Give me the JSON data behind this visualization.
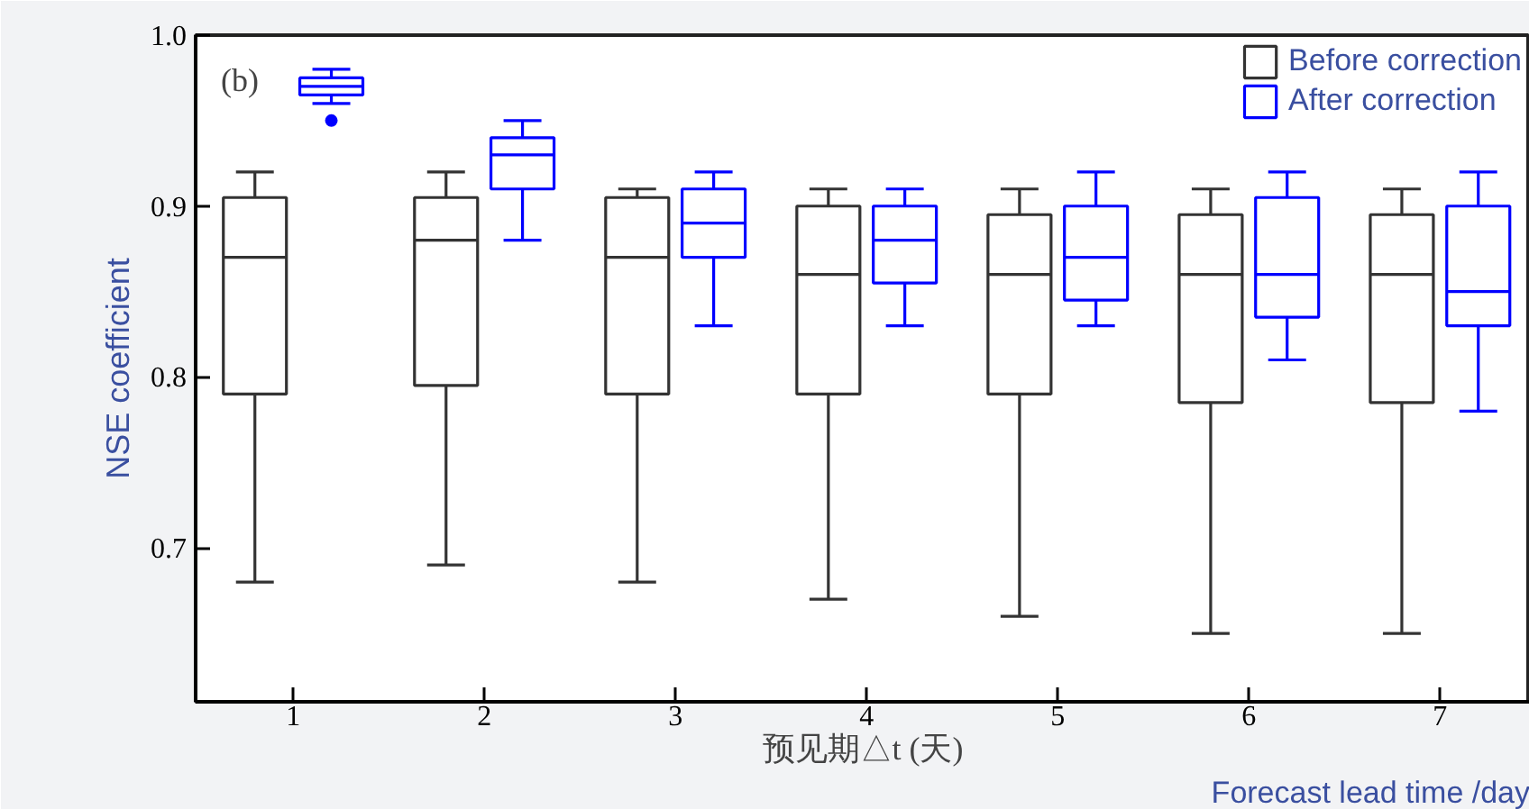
{
  "chart_data": {
    "type": "box",
    "categories": [
      "1",
      "2",
      "3",
      "4",
      "5",
      "6",
      "7"
    ],
    "xlabel": "预见期△t (天)",
    "ylabel": "NSE coefficient",
    "annotations": [
      "(b)",
      "Forecast lead time /day"
    ],
    "ylim": [
      0.61,
      1.0
    ],
    "yticks": [
      0.7,
      0.8,
      0.9,
      {
        "value": 1.0,
        "label": "1.0"
      }
    ],
    "grid": false,
    "legend": "top right",
    "series": [
      {
        "name": "Before correction",
        "color": "#333333",
        "boxes": [
          {
            "low": 0.68,
            "q1": 0.79,
            "median": 0.87,
            "q3": 0.905,
            "high": 0.92
          },
          {
            "low": 0.69,
            "q1": 0.795,
            "median": 0.88,
            "q3": 0.905,
            "high": 0.92
          },
          {
            "low": 0.68,
            "q1": 0.79,
            "median": 0.87,
            "q3": 0.905,
            "high": 0.91
          },
          {
            "low": 0.67,
            "q1": 0.79,
            "median": 0.86,
            "q3": 0.9,
            "high": 0.91
          },
          {
            "low": 0.66,
            "q1": 0.79,
            "median": 0.86,
            "q3": 0.895,
            "high": 0.91
          },
          {
            "low": 0.65,
            "q1": 0.785,
            "median": 0.86,
            "q3": 0.895,
            "high": 0.91
          },
          {
            "low": 0.65,
            "q1": 0.785,
            "median": 0.86,
            "q3": 0.895,
            "high": 0.91
          }
        ]
      },
      {
        "name": "After correction",
        "color": "#0000ff",
        "boxes": [
          {
            "low": 0.96,
            "q1": 0.965,
            "median": 0.97,
            "q3": 0.975,
            "high": 0.98,
            "outliers": [
              0.95
            ]
          },
          {
            "low": 0.88,
            "q1": 0.91,
            "median": 0.93,
            "q3": 0.94,
            "high": 0.95
          },
          {
            "low": 0.83,
            "q1": 0.87,
            "median": 0.89,
            "q3": 0.91,
            "high": 0.92
          },
          {
            "low": 0.83,
            "q1": 0.855,
            "median": 0.88,
            "q3": 0.9,
            "high": 0.91
          },
          {
            "low": 0.83,
            "q1": 0.845,
            "median": 0.87,
            "q3": 0.9,
            "high": 0.92
          },
          {
            "low": 0.81,
            "q1": 0.835,
            "median": 0.86,
            "q3": 0.905,
            "high": 0.92
          },
          {
            "low": 0.78,
            "q1": 0.83,
            "median": 0.85,
            "q3": 0.9,
            "high": 0.92
          }
        ]
      }
    ]
  }
}
